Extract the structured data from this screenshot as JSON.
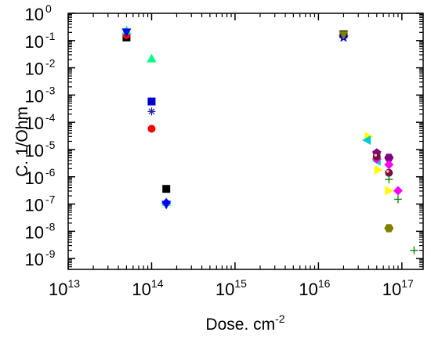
{
  "chart_data": {
    "type": "scatter",
    "title": "",
    "xlabel": "Dose. cm",
    "xlabel_superscript": "-2",
    "ylabel": "C. 1/Ohm",
    "x_scale": "log",
    "y_scale": "log",
    "xlim": [
      10000000000000.0,
      1.8e+17
    ],
    "ylim": [
      4e-10,
      1
    ],
    "grid": false,
    "legend": "none",
    "x_ticks": [
      {
        "value": 10000000000000.0,
        "base": "10",
        "exp": "13"
      },
      {
        "value": 100000000000000.0,
        "base": "10",
        "exp": "14"
      },
      {
        "value": 1000000000000000.0,
        "base": "10",
        "exp": "15"
      },
      {
        "value": 1e+16,
        "base": "10",
        "exp": "16"
      },
      {
        "value": 1e+17,
        "base": "10",
        "exp": "17"
      }
    ],
    "y_ticks": [
      {
        "value": 1,
        "base": "10",
        "exp": "0"
      },
      {
        "value": 0.1,
        "base": "10",
        "exp": "-1"
      },
      {
        "value": 0.01,
        "base": "10",
        "exp": "-2"
      },
      {
        "value": 0.001,
        "base": "10",
        "exp": "-3"
      },
      {
        "value": 0.0001,
        "base": "10",
        "exp": "-4"
      },
      {
        "value": 1e-05,
        "base": "10",
        "exp": "-5"
      },
      {
        "value": 1e-06,
        "base": "10",
        "exp": "-6"
      },
      {
        "value": 1e-07,
        "base": "10",
        "exp": "-7"
      },
      {
        "value": 1e-08,
        "base": "10",
        "exp": "-8"
      },
      {
        "value": 1e-09,
        "base": "10",
        "exp": "-9"
      }
    ],
    "series": [
      {
        "marker": "square",
        "color": "#000000",
        "points": [
          [
            50000000000000.0,
            0.13
          ],
          [
            150000000000000.0,
            3.6e-07
          ],
          [
            2e+16,
            0.17
          ]
        ]
      },
      {
        "marker": "circle",
        "color": "#ff0000",
        "points": [
          [
            50000000000000.0,
            0.16
          ],
          [
            100000000000000.0,
            5.8e-05
          ]
        ]
      },
      {
        "marker": "triangle-up",
        "color": "#00ff80",
        "points": [
          [
            50000000000000.0,
            0.24
          ],
          [
            100000000000000.0,
            0.022
          ],
          [
            150000000000000.0,
            1.2e-07
          ]
        ]
      },
      {
        "marker": "triangle-down",
        "color": "#0000ff",
        "points": [
          [
            50000000000000.0,
            0.2
          ],
          [
            150000000000000.0,
            9.5e-08
          ]
        ]
      },
      {
        "marker": "square",
        "color": "#0000cc",
        "points": [
          [
            100000000000000.0,
            0.00058
          ]
        ]
      },
      {
        "marker": "asterisk",
        "color": "#1a1aa0",
        "points": [
          [
            100000000000000.0,
            0.00025
          ]
        ]
      },
      {
        "marker": "diamond",
        "color": "#0000ff",
        "points": [
          [
            150000000000000.0,
            1.1e-07
          ]
        ]
      },
      {
        "marker": "star",
        "color": "#0000cc",
        "points": [
          [
            2e+16,
            0.13
          ]
        ]
      },
      {
        "marker": "triangle-down",
        "color": "#808000",
        "points": [
          [
            2e+16,
            0.16
          ]
        ]
      },
      {
        "marker": "triangle-right",
        "color": "#ffff00",
        "points": [
          [
            4e+16,
            3e-05
          ],
          [
            5.2e+16,
            1.8e-06
          ],
          [
            7e+16,
            3.1e-07
          ]
        ]
      },
      {
        "marker": "triangle-left",
        "color": "#00cccc",
        "points": [
          [
            3.8e+16,
            2.2e-05
          ],
          [
            5e+16,
            3.8e-06
          ]
        ]
      },
      {
        "marker": "pentagon",
        "color": "#800080",
        "points": [
          [
            5e+16,
            7.5e-06
          ]
        ]
      },
      {
        "marker": "hexagon",
        "color": "#800080",
        "points": [
          [
            7e+16,
            5e-06
          ]
        ]
      },
      {
        "marker": "diamond",
        "color": "#ff00ff",
        "points": [
          [
            5e+16,
            4.5e-06
          ],
          [
            7e+16,
            2.8e-06
          ],
          [
            9e+16,
            3.1e-07
          ]
        ]
      },
      {
        "marker": "sphere",
        "color": "#7a0f3a",
        "points": [
          [
            5e+16,
            5.5e-06
          ],
          [
            7e+16,
            1.4e-06
          ]
        ]
      },
      {
        "marker": "plus",
        "color": "#008000",
        "points": [
          [
            7e+16,
            8e-07
          ],
          [
            9e+16,
            1.5e-07
          ],
          [
            1.4e+17,
            2e-09
          ]
        ]
      },
      {
        "marker": "hexagon",
        "color": "#808000",
        "points": [
          [
            7e+16,
            1.3e-08
          ]
        ]
      }
    ]
  }
}
